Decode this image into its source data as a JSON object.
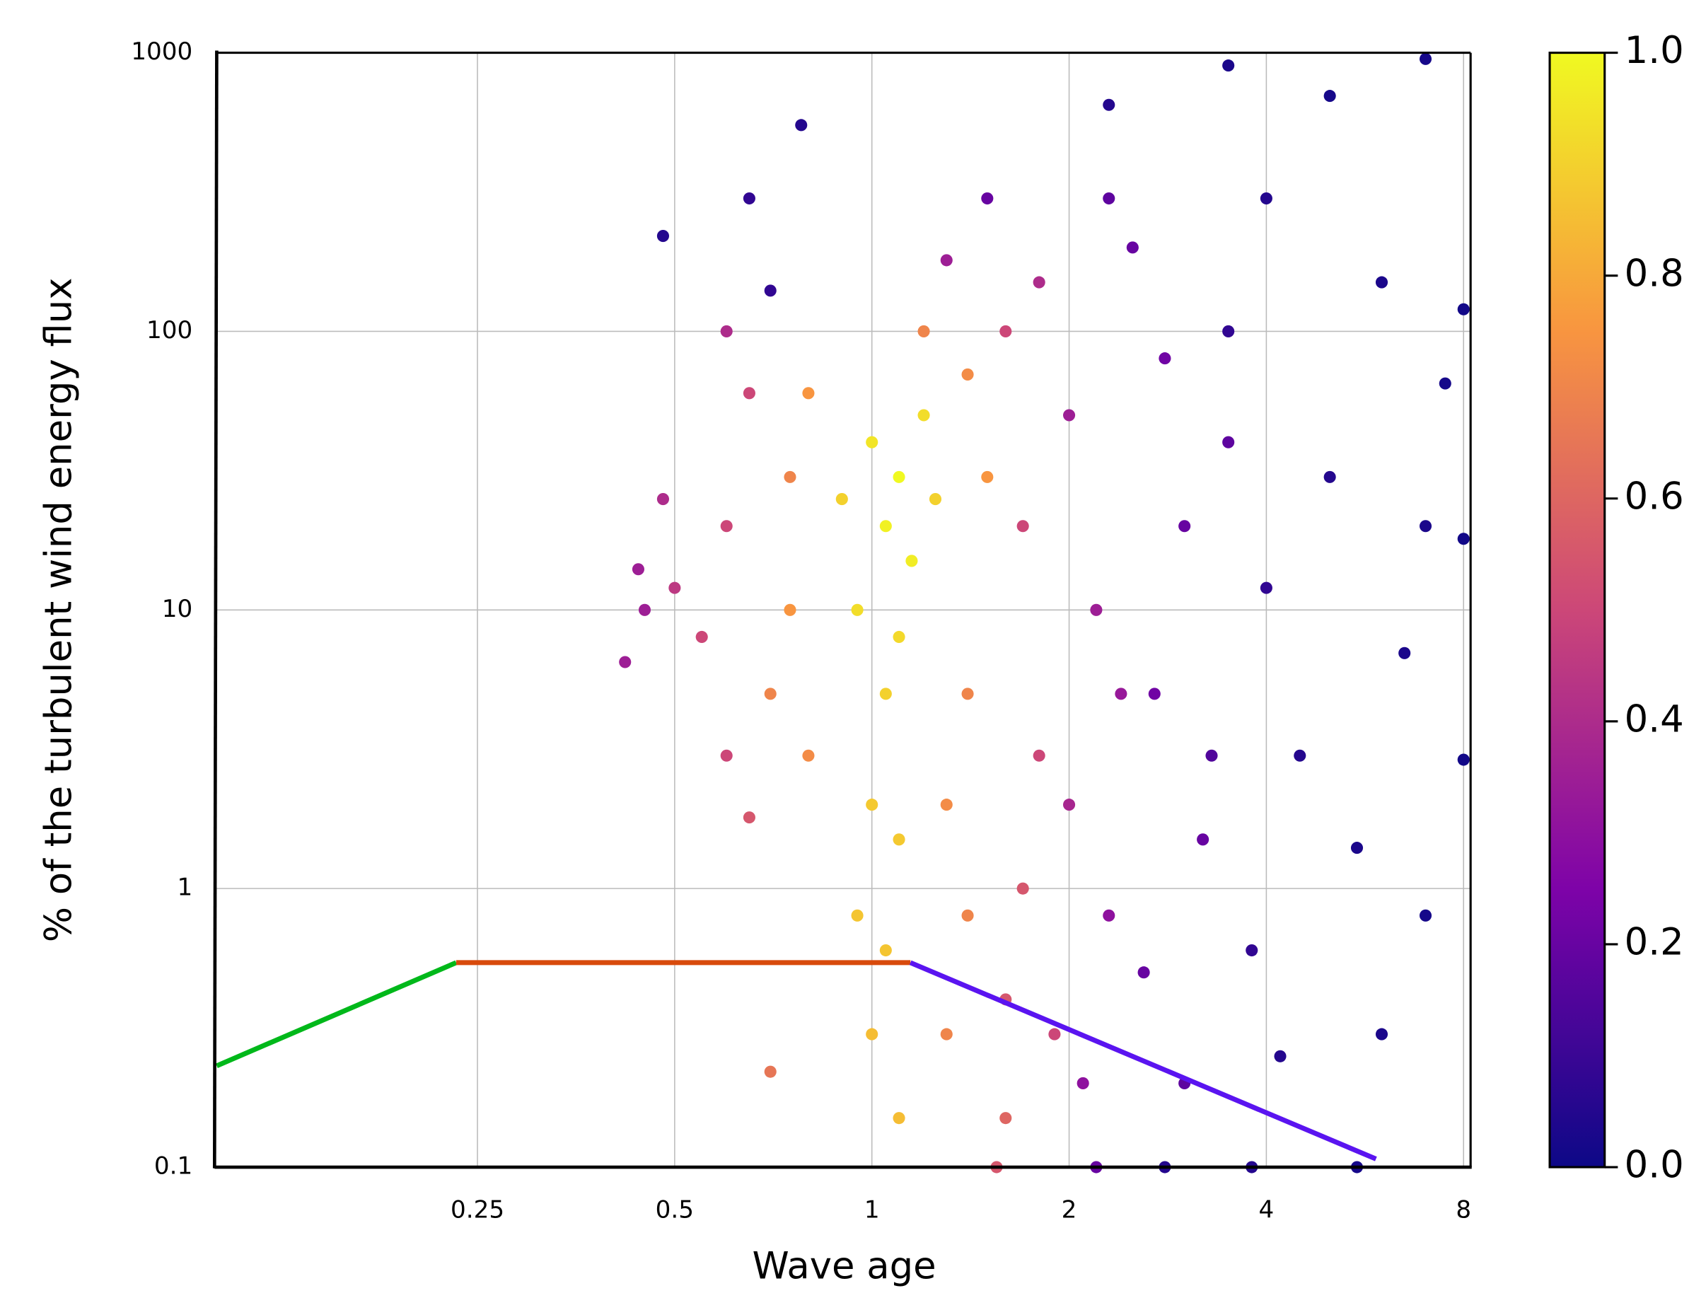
{
  "chart_data": {
    "type": "scatter",
    "x_label": "Wave age",
    "y_label": "% of the turbulent wind energy flux",
    "xscale": "log",
    "yscale": "log",
    "grid": true,
    "xlim": [
      0.1,
      8.2
    ],
    "ylim": [
      0.1,
      1000
    ],
    "xticks": [
      0.25,
      0.5,
      1,
      2,
      4,
      8
    ],
    "yticks": [
      0.1,
      1,
      10,
      100,
      1000
    ],
    "colorbar": {
      "lim": [
        0,
        1
      ],
      "ticks": [
        {
          "value": 0,
          "label": "0.0"
        },
        0.2,
        0.4,
        0.6,
        0.8,
        {
          "value": 1,
          "label": "1.0"
        }
      ],
      "colors": [
        "#0d0887",
        "#7e03a8",
        "#cc4778",
        "#f89540",
        "#f0f921"
      ]
    },
    "series": [
      {
        "x": [
          1.1,
          1.05,
          1.15,
          1.0,
          1.2,
          0.95,
          1.1,
          1.25,
          0.9,
          1.05,
          1.0,
          1.1,
          0.95,
          1.05,
          1.0,
          1.1,
          0.8,
          1.4,
          0.75,
          0.7,
          1.4,
          1.3,
          1.4,
          1.3,
          0.7,
          1.6,
          0.75,
          1.5,
          0.8,
          1.2,
          0.6,
          0.55,
          0.6,
          0.65,
          0.65,
          1.6,
          1.7,
          1.8,
          1.7,
          1.6,
          1.55,
          0.5,
          1.9,
          0.45,
          0.42,
          0.48,
          1.3,
          1.8,
          2.0,
          2.2,
          2.0,
          2.3,
          2.1,
          0.6,
          2.4,
          0.44,
          1.5,
          2.5,
          2.8,
          3.0,
          2.7,
          3.2,
          2.6,
          3.0,
          2.2,
          3.5,
          2.3,
          3.3,
          0.48,
          0.78,
          0.65,
          0.7,
          2.3,
          3.5,
          5,
          7,
          4,
          6,
          7.5,
          5,
          7,
          6.5,
          4.5,
          5.5,
          7,
          6,
          4.2,
          3.8,
          4,
          3.5,
          5.5,
          8,
          8,
          8,
          3.8,
          2.8
        ],
        "values": [
          30,
          20,
          15,
          40,
          50,
          10,
          8,
          25,
          25,
          5,
          2,
          1.5,
          0.8,
          0.6,
          0.3,
          0.15,
          60,
          70,
          10,
          5,
          5,
          2,
          0.8,
          0.3,
          0.22,
          0.15,
          30,
          30,
          3,
          100,
          20,
          8,
          3,
          1.8,
          60,
          100,
          20,
          3,
          1,
          0.4,
          0.1,
          12,
          0.3,
          10,
          6.5,
          25,
          180,
          150,
          50,
          10,
          2,
          0.8,
          0.2,
          100,
          5,
          14,
          300,
          200,
          80,
          20,
          5,
          1.5,
          0.5,
          0.2,
          0.1,
          40,
          300,
          3,
          220,
          550,
          300,
          140,
          650,
          900,
          700,
          950,
          300,
          150,
          65,
          30,
          20,
          7,
          3,
          1.4,
          0.8,
          0.3,
          0.25,
          0.1,
          12,
          100,
          0.1,
          2.9,
          18,
          120,
          0.6,
          0.1
        ],
        "c": [
          1.0,
          0.98,
          0.97,
          0.95,
          0.93,
          0.93,
          0.92,
          0.9,
          0.9,
          0.9,
          0.88,
          0.88,
          0.87,
          0.87,
          0.85,
          0.85,
          0.75,
          0.72,
          0.75,
          0.7,
          0.7,
          0.72,
          0.7,
          0.7,
          0.65,
          0.6,
          0.7,
          0.75,
          0.72,
          0.7,
          0.5,
          0.5,
          0.5,
          0.55,
          0.5,
          0.5,
          0.5,
          0.5,
          0.55,
          0.55,
          0.55,
          0.45,
          0.5,
          0.35,
          0.35,
          0.4,
          0.35,
          0.4,
          0.35,
          0.35,
          0.38,
          0.3,
          0.3,
          0.4,
          0.33,
          0.35,
          0.2,
          0.2,
          0.22,
          0.2,
          0.22,
          0.2,
          0.2,
          0.18,
          0.2,
          0.18,
          0.18,
          0.15,
          0.05,
          0.05,
          0.08,
          0.08,
          0.05,
          0.03,
          0.02,
          0.02,
          0.05,
          0.03,
          0.02,
          0.05,
          0.03,
          0.03,
          0.05,
          0.03,
          0.02,
          0.03,
          0.05,
          0.05,
          0.08,
          0.08,
          0.02,
          0.01,
          0.01,
          0.01,
          0.08,
          0.05
        ]
      }
    ],
    "lines": [
      {
        "color": "#00b81a",
        "x": [
          0.1,
          0.232
        ],
        "values": [
          0.231,
          0.542
        ]
      },
      {
        "color": "#d84a0c",
        "x": [
          0.232,
          1.145
        ],
        "values": [
          0.542,
          0.542
        ]
      },
      {
        "color": "#5a14f0",
        "x": [
          1.145,
          5.88
        ],
        "values": [
          0.542,
          0.107
        ]
      }
    ]
  }
}
